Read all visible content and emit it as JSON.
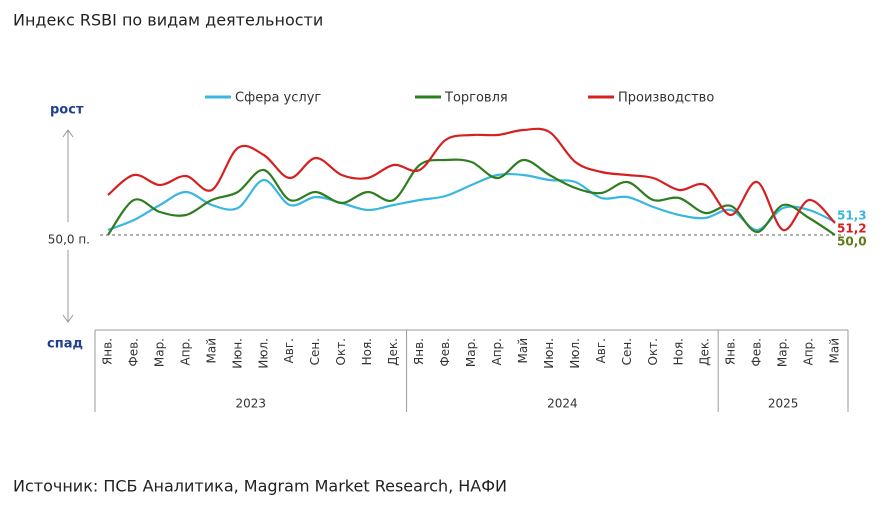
{
  "chart_data": {
    "type": "line",
    "title": "Индекс RSBI по видам деятельности",
    "source": "Источник: ПСБ Аналитика, Magram Market Research, НАФИ",
    "up_label": "рост",
    "down_label": "спад",
    "groups": [
      {
        "name": "2023",
        "categories": [
          "Янв.",
          "Фев.",
          "Мар.",
          "Апр.",
          "Май",
          "Июн.",
          "Июл.",
          "Авг.",
          "Сен.",
          "Окт.",
          "Ноя.",
          "Дек."
        ]
      },
      {
        "name": "2024",
        "categories": [
          "Янв.",
          "Фев.",
          "Мар.",
          "Апр.",
          "Май",
          "Июн.",
          "Июл.",
          "Авг.",
          "Сен.",
          "Окт.",
          "Ноя.",
          "Дек."
        ]
      },
      {
        "name": "2025",
        "categories": [
          "Янв.",
          "Фев.",
          "Мар.",
          "Апр.",
          "Май"
        ]
      }
    ],
    "ylim": [
      40,
      65
    ],
    "yticks": [
      {
        "value": 50,
        "label": "50,0 п."
      }
    ],
    "series": [
      {
        "name": "Сфера услуг",
        "color": "#3ab7e0",
        "values": [
          50.5,
          51.5,
          53.0,
          54.3,
          53.0,
          52.7,
          55.5,
          53.0,
          53.8,
          53.2,
          52.5,
          53.0,
          53.5,
          53.9,
          55.0,
          56.0,
          56.0,
          55.5,
          55.3,
          53.7,
          53.8,
          52.8,
          52.0,
          51.7,
          52.5,
          50.5,
          52.7,
          52.5,
          51.3
        ],
        "value_labels": [
          null,
          null,
          null,
          null,
          null,
          null,
          null,
          null,
          null,
          null,
          null,
          null,
          null,
          null,
          null,
          null,
          null,
          null,
          null,
          null,
          null,
          null,
          null,
          null,
          null,
          null,
          null,
          null,
          "51,3"
        ]
      },
      {
        "name": "Торговля",
        "color": "#2e7d1e",
        "label_color": "#5e7a16",
        "values": [
          50.0,
          53.5,
          52.3,
          52.0,
          53.5,
          54.3,
          56.5,
          53.5,
          54.3,
          53.2,
          54.3,
          53.5,
          57.0,
          57.5,
          57.3,
          55.7,
          57.5,
          56.0,
          54.7,
          54.2,
          55.3,
          53.5,
          53.7,
          52.2,
          52.9,
          50.3,
          53.0,
          51.7,
          50.0
        ],
        "value_labels": [
          null,
          null,
          null,
          null,
          null,
          null,
          null,
          null,
          null,
          null,
          null,
          null,
          null,
          null,
          null,
          null,
          null,
          null,
          null,
          null,
          null,
          null,
          null,
          null,
          null,
          null,
          null,
          null,
          "50,0"
        ]
      },
      {
        "name": "Производство",
        "color": "#d62020",
        "values": [
          54.0,
          56.0,
          55.0,
          55.9,
          54.5,
          58.7,
          58.0,
          55.7,
          57.7,
          56.0,
          55.7,
          57.0,
          56.5,
          59.5,
          60.0,
          60.0,
          60.5,
          60.3,
          57.3,
          56.3,
          56.0,
          55.7,
          54.5,
          55.0,
          52.0,
          55.3,
          50.5,
          53.5,
          51.2
        ],
        "value_labels": [
          null,
          null,
          null,
          null,
          null,
          null,
          null,
          null,
          null,
          null,
          null,
          null,
          null,
          null,
          null,
          null,
          null,
          null,
          null,
          null,
          null,
          null,
          null,
          null,
          null,
          null,
          null,
          null,
          "51,2"
        ]
      }
    ]
  }
}
